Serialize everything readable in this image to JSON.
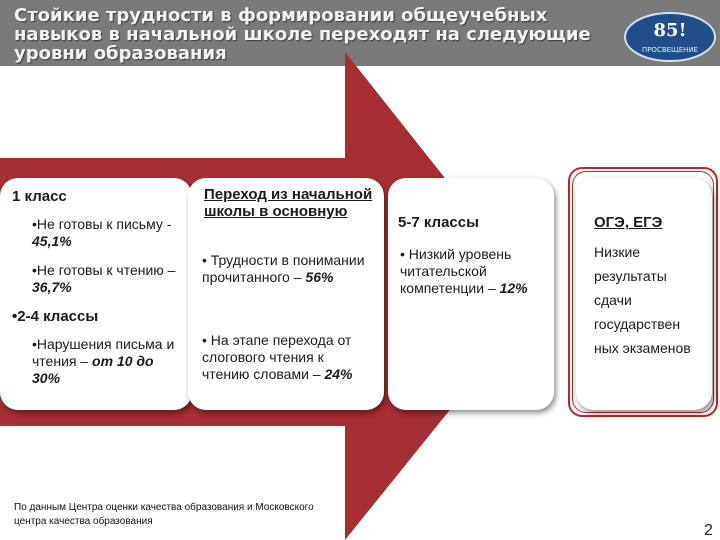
{
  "title": "Стойкие трудности в формировании общеучебных навыков в начальной школе переходят на следующие уровни образования",
  "logo": {
    "number": "85!",
    "text": "ПРОСВЕЩЕНИЕ"
  },
  "col1": {
    "heading": "1 класс",
    "item1_label": "•Не готовы к письму - ",
    "item1_value": "45,1%",
    "item2_label": "•Не готовы к чтению – ",
    "item2_value": "36,7%",
    "subheading": "•2-4 классы",
    "item3_label": "•Нарушения письма и чтения – ",
    "item3_value": "от 10 до 30%"
  },
  "col2": {
    "heading": "Переход из начальной школы в основную",
    "item1_label": "• Трудности в понимании прочитанного – ",
    "item1_value": "56%",
    "item2_label": "• На этапе перехода от слогового чтения к чтению словами – ",
    "item2_value": "24%"
  },
  "col3": {
    "heading": "5-7 классы",
    "item1_label": "• Низкий уровень читательской компетенции – ",
    "item1_value": "12%"
  },
  "col4": {
    "heading": "ОГЭ, ЕГЭ",
    "text": "Низкие результаты сдачи государствен ных экзаменов"
  },
  "footer": "По данным Центра оценки качества образования и Московского центра качества образования",
  "page_number": "2",
  "colors": {
    "arrow": "#a62f33",
    "header": "#7a7a7a",
    "ring": "#c0242b"
  }
}
